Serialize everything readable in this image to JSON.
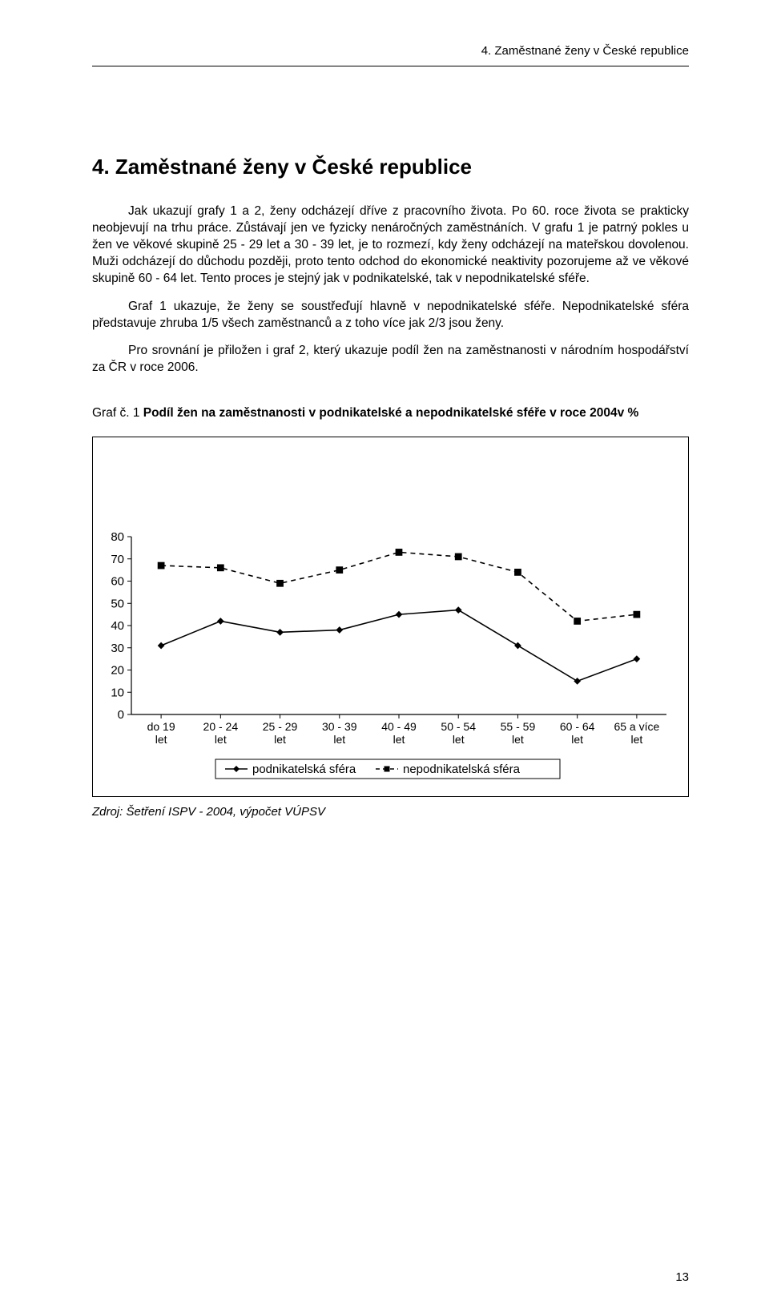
{
  "running_head": "4. Zaměstnané ženy v České republice",
  "title": "4. Zaměstnané ženy v České republice",
  "paragraphs": {
    "p1": "Jak ukazují grafy 1 a 2, ženy odcházejí dříve z pracovního života. Po 60. roce života se prakticky neobjevují na trhu práce. Zůstávají jen ve fyzicky nenáročných zaměstnáních. V grafu 1 je patrný pokles u žen ve věkové skupině 25 - 29 let a 30 - 39 let, je to rozmezí, kdy ženy odcházejí na mateřskou dovolenou. Muži odcházejí do důchodu později, proto tento odchod do ekonomické neaktivity pozorujeme až ve věkové skupině 60 - 64 let. Tento proces je stejný jak v podnikatelské, tak v nepodnikatelské sféře.",
    "p2": "Graf 1 ukazuje, že ženy se soustřeďují hlavně v nepodnikatelské sféře. Nepodnikatelské sféra představuje zhruba 1/5 všech zaměstnanců a z toho více jak 2/3 jsou ženy.",
    "p3": "Pro srovnání je přiložen i graf 2, který ukazuje podíl žen na zaměstnanosti v národním hospodářství za ČR v roce 2006."
  },
  "chart": {
    "title_lead": "Graf č. 1 ",
    "title_bold": "Podíl žen na zaměstnanosti v podnikatelské a nepodnikatelské sféře v roce 2004v %",
    "type": "line",
    "categories": [
      "do 19 let",
      "20 - 24 let",
      "25 - 29 let",
      "30 - 39 let",
      "40 - 49 let",
      "50 - 54 let",
      "55 - 59 let",
      "60 - 64 let",
      "65 a více let"
    ],
    "series": [
      {
        "name": "podnikatelská sféra",
        "marker": "diamond",
        "dash": "solid",
        "color": "#000000",
        "values": [
          31,
          42,
          37,
          38,
          45,
          47,
          31,
          15,
          25
        ]
      },
      {
        "name": "nepodnikatelská sféra",
        "marker": "square",
        "dash": "dashed",
        "color": "#000000",
        "values": [
          67,
          66,
          59,
          65,
          73,
          71,
          64,
          42,
          45
        ]
      }
    ],
    "ylim": [
      0,
      80
    ],
    "ytick_step": 10,
    "y_ticks": [
      0,
      10,
      20,
      30,
      40,
      50,
      60,
      70,
      80
    ],
    "plot_background": "#ffffff",
    "grid": false,
    "line_width": 1.6,
    "marker_size": 7,
    "axis_color": "#000000",
    "tick_color": "#000000",
    "font_family": "Arial",
    "label_fontsize": 14,
    "legend_border": "#000000"
  },
  "source": "Zdroj: Šetření  ISPV - 2004, výpočet VÚPSV",
  "page_number": "13"
}
